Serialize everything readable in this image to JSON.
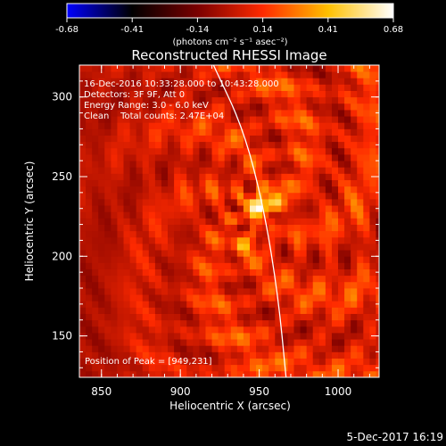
{
  "colorbar": {
    "ticks": [
      "-0.68",
      "-0.41",
      "-0.14",
      "0.14",
      "0.41",
      "0.68"
    ],
    "units_label": "(photons cm⁻² s⁻¹ asec⁻²)",
    "range": [
      -0.68,
      0.68
    ],
    "colormap": [
      "#0000ff",
      "#000000",
      "#7a0000",
      "#ff2a00",
      "#ffc000",
      "#ffffff"
    ]
  },
  "chart_data": {
    "type": "heatmap",
    "title": "Reconstructed RHESSI Image",
    "xlabel": "Heliocentric X (arcsec)",
    "ylabel": "Heliocentric Y (arcsec)",
    "xlim": [
      836,
      1026
    ],
    "ylim": [
      124,
      320
    ],
    "xticks": [
      850,
      900,
      950,
      1000
    ],
    "yticks": [
      150,
      200,
      250,
      300
    ],
    "annotations": [
      "16-Dec-2016 10:33:28.000 to 10:43:28.000",
      "Detectors: 3F 9F, Att 0",
      "Energy Range: 3.0 - 6.0 keV",
      "Clean    Total counts: 2.47E+04"
    ],
    "peak_label": "Position of Peak = [949,231]",
    "sources": [
      {
        "x": 949,
        "y": 231,
        "value": 0.68
      },
      {
        "x": 961,
        "y": 238,
        "value": 0.42
      },
      {
        "x": 939,
        "y": 205,
        "value": 0.36
      }
    ],
    "limb": [
      [
        921,
        320
      ],
      [
        940,
        280
      ],
      [
        953,
        230
      ],
      [
        962,
        175
      ],
      [
        967,
        124
      ]
    ]
  },
  "footer": {
    "date": "5-Dec-2017 16:19"
  }
}
